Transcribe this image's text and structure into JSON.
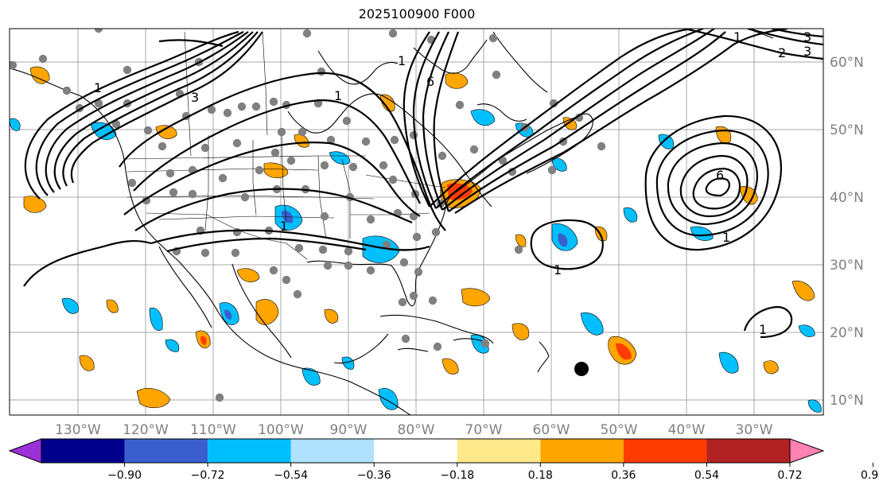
{
  "title": "2025100900 F000",
  "lat_labels": [
    "60°N",
    "50°N",
    "40°N",
    "30°N",
    "20°N",
    "10°N"
  ],
  "lon_labels": [
    "130°W",
    "120°W",
    "110°W",
    "100°W",
    "90°W",
    "80°W",
    "70°W",
    "60°W",
    "50°W",
    "40°W",
    "30°W"
  ],
  "colorbar": {
    "ticks": [
      "−0.90",
      "−0.72",
      "−0.54",
      "−0.36",
      "−0.18",
      "0.18",
      "0.36",
      "0.54",
      "0.72",
      "0.90"
    ],
    "colors": [
      "#9b30d9",
      "#00008b",
      "#3a5fcd",
      "#00bfff",
      "#b0e2ff",
      "#ffffff",
      "#ffe98a",
      "#ffa500",
      "#ff3c00",
      "#b22222",
      "#ff82b4"
    ]
  },
  "contour_labels": [
    "1",
    "1",
    "1",
    "1",
    "3",
    "6",
    "1",
    "1",
    "1",
    "2",
    "3",
    "6",
    "3",
    "1"
  ],
  "colors": {
    "grid": "#a9a9a9",
    "station": "#808080",
    "storm_marker": "#000000"
  }
}
